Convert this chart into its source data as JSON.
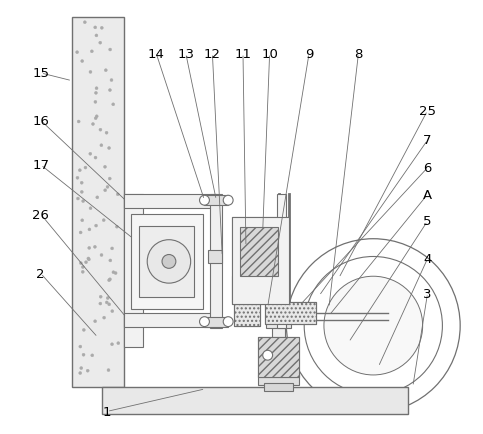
{
  "bg_color": "#ffffff",
  "lc": "#707070",
  "lw": 0.8,
  "fig_w": 4.83,
  "fig_h": 4.35,
  "dpi": 100
}
